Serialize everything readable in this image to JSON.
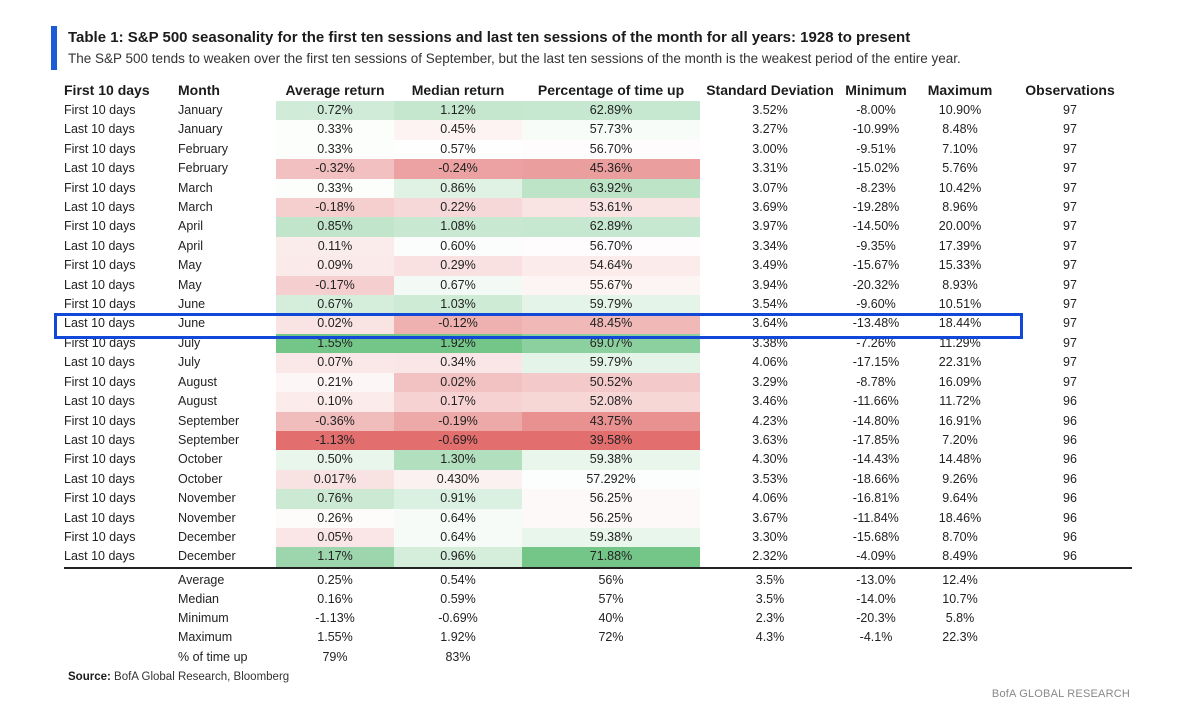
{
  "title": "Table 1: S&P 500 seasonality for the first ten sessions and last ten sessions of the month for all years: 1928 to present",
  "subtitle": "The S&P 500 tends to weaken over the first ten sessions of September, but the last ten sessions of the month is the weakest period of the entire year.",
  "columns": [
    "First 10 days",
    "Month",
    "Average return",
    "Median return",
    "Percentage of time up",
    "Standard Deviation",
    "Minimum",
    "Maximum",
    "Observations"
  ],
  "highlighted_row_index": 11,
  "highlight_color": "#1248d8",
  "heatmap_colors": {
    "positive": "#63be7b",
    "negative": "#e06666",
    "neutral": "#ffffff"
  },
  "rows": [
    {
      "period": "First 10 days",
      "month": "January",
      "avg": "0.72%",
      "median": "1.12%",
      "pct_up": "62.89%",
      "std": "3.52%",
      "min": "-8.00%",
      "max": "10.90%",
      "obs": "97"
    },
    {
      "period": "Last 10 days",
      "month": "January",
      "avg": "0.33%",
      "median": "0.45%",
      "pct_up": "57.73%",
      "std": "3.27%",
      "min": "-10.99%",
      "max": "8.48%",
      "obs": "97"
    },
    {
      "period": "First 10 days",
      "month": "February",
      "avg": "0.33%",
      "median": "0.57%",
      "pct_up": "56.70%",
      "std": "3.00%",
      "min": "-9.51%",
      "max": "7.10%",
      "obs": "97"
    },
    {
      "period": "Last 10 days",
      "month": "February",
      "avg": "-0.32%",
      "median": "-0.24%",
      "pct_up": "45.36%",
      "std": "3.31%",
      "min": "-15.02%",
      "max": "5.76%",
      "obs": "97"
    },
    {
      "period": "First 10 days",
      "month": "March",
      "avg": "0.33%",
      "median": "0.86%",
      "pct_up": "63.92%",
      "std": "3.07%",
      "min": "-8.23%",
      "max": "10.42%",
      "obs": "97"
    },
    {
      "period": "Last 10 days",
      "month": "March",
      "avg": "-0.18%",
      "median": "0.22%",
      "pct_up": "53.61%",
      "std": "3.69%",
      "min": "-19.28%",
      "max": "8.96%",
      "obs": "97"
    },
    {
      "period": "First 10 days",
      "month": "April",
      "avg": "0.85%",
      "median": "1.08%",
      "pct_up": "62.89%",
      "std": "3.97%",
      "min": "-14.50%",
      "max": "20.00%",
      "obs": "97"
    },
    {
      "period": "Last 10 days",
      "month": "April",
      "avg": "0.11%",
      "median": "0.60%",
      "pct_up": "56.70%",
      "std": "3.34%",
      "min": "-9.35%",
      "max": "17.39%",
      "obs": "97"
    },
    {
      "period": "First 10 days",
      "month": "May",
      "avg": "0.09%",
      "median": "0.29%",
      "pct_up": "54.64%",
      "std": "3.49%",
      "min": "-15.67%",
      "max": "15.33%",
      "obs": "97"
    },
    {
      "period": "Last 10 days",
      "month": "May",
      "avg": "-0.17%",
      "median": "0.67%",
      "pct_up": "55.67%",
      "std": "3.94%",
      "min": "-20.32%",
      "max": "8.93%",
      "obs": "97"
    },
    {
      "period": "First 10 days",
      "month": "June",
      "avg": "0.67%",
      "median": "1.03%",
      "pct_up": "59.79%",
      "std": "3.54%",
      "min": "-9.60%",
      "max": "10.51%",
      "obs": "97"
    },
    {
      "period": "Last 10 days",
      "month": "June",
      "avg": "0.02%",
      "median": "-0.12%",
      "pct_up": "48.45%",
      "std": "3.64%",
      "min": "-13.48%",
      "max": "18.44%",
      "obs": "97"
    },
    {
      "period": "First 10 days",
      "month": "July",
      "avg": "1.55%",
      "median": "1.92%",
      "pct_up": "69.07%",
      "std": "3.38%",
      "min": "-7.26%",
      "max": "11.29%",
      "obs": "97"
    },
    {
      "period": "Last 10 days",
      "month": "July",
      "avg": "0.07%",
      "median": "0.34%",
      "pct_up": "59.79%",
      "std": "4.06%",
      "min": "-17.15%",
      "max": "22.31%",
      "obs": "97"
    },
    {
      "period": "First 10 days",
      "month": "August",
      "avg": "0.21%",
      "median": "0.02%",
      "pct_up": "50.52%",
      "std": "3.29%",
      "min": "-8.78%",
      "max": "16.09%",
      "obs": "97"
    },
    {
      "period": "Last 10 days",
      "month": "August",
      "avg": "0.10%",
      "median": "0.17%",
      "pct_up": "52.08%",
      "std": "3.46%",
      "min": "-11.66%",
      "max": "11.72%",
      "obs": "96"
    },
    {
      "period": "First 10 days",
      "month": "September",
      "avg": "-0.36%",
      "median": "-0.19%",
      "pct_up": "43.75%",
      "std": "4.23%",
      "min": "-14.80%",
      "max": "16.91%",
      "obs": "96"
    },
    {
      "period": "Last 10 days",
      "month": "September",
      "avg": "-1.13%",
      "median": "-0.69%",
      "pct_up": "39.58%",
      "std": "3.63%",
      "min": "-17.85%",
      "max": "7.20%",
      "obs": "96"
    },
    {
      "period": "First 10 days",
      "month": "October",
      "avg": "0.50%",
      "median": "1.30%",
      "pct_up": "59.38%",
      "std": "4.30%",
      "min": "-14.43%",
      "max": "14.48%",
      "obs": "96"
    },
    {
      "period": "Last 10 days",
      "month": "October",
      "avg": "0.017%",
      "median": "0.430%",
      "pct_up": "57.292%",
      "std": "3.53%",
      "min": "-18.66%",
      "max": "9.26%",
      "obs": "96"
    },
    {
      "period": "First 10 days",
      "month": "November",
      "avg": "0.76%",
      "median": "0.91%",
      "pct_up": "56.25%",
      "std": "4.06%",
      "min": "-16.81%",
      "max": "9.64%",
      "obs": "96"
    },
    {
      "period": "Last 10 days",
      "month": "November",
      "avg": "0.26%",
      "median": "0.64%",
      "pct_up": "56.25%",
      "std": "3.67%",
      "min": "-11.84%",
      "max": "18.46%",
      "obs": "96"
    },
    {
      "period": "First 10 days",
      "month": "December",
      "avg": "0.05%",
      "median": "0.64%",
      "pct_up": "59.38%",
      "std": "3.30%",
      "min": "-15.68%",
      "max": "8.70%",
      "obs": "96"
    },
    {
      "period": "Last 10 days",
      "month": "December",
      "avg": "1.17%",
      "median": "0.96%",
      "pct_up": "71.88%",
      "std": "2.32%",
      "min": "-4.09%",
      "max": "8.49%",
      "obs": "96"
    }
  ],
  "summary": [
    {
      "label": "Average",
      "avg": "0.25%",
      "median": "0.54%",
      "pct_up": "56%",
      "std": "3.5%",
      "min": "-13.0%",
      "max": "12.4%"
    },
    {
      "label": "Median",
      "avg": "0.16%",
      "median": "0.59%",
      "pct_up": "57%",
      "std": "3.5%",
      "min": "-14.0%",
      "max": "10.7%"
    },
    {
      "label": "Minimum",
      "avg": "-1.13%",
      "median": "-0.69%",
      "pct_up": "40%",
      "std": "2.3%",
      "min": "-20.3%",
      "max": "5.8%"
    },
    {
      "label": "Maximum",
      "avg": "1.55%",
      "median": "1.92%",
      "pct_up": "72%",
      "std": "4.3%",
      "min": "-4.1%",
      "max": "22.3%"
    },
    {
      "label": "% of time up",
      "avg": "79%",
      "median": "83%",
      "pct_up": "",
      "std": "",
      "min": "",
      "max": ""
    }
  ],
  "source": {
    "label": "Source:",
    "text": " BofA Global Research, Bloomberg"
  },
  "footer_brand": "BofA GLOBAL RESEARCH"
}
